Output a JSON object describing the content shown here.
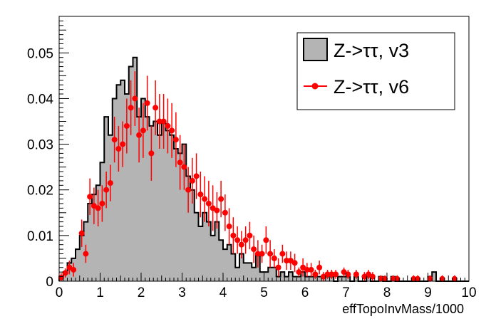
{
  "chart_data": {
    "type": "histogram",
    "title": "",
    "xlabel": "effTopoInvMass/1000",
    "ylabel": "",
    "xlim": [
      0,
      10
    ],
    "ylim": [
      0,
      0.058
    ],
    "x_ticks": [
      "0",
      "1",
      "2",
      "3",
      "4",
      "5",
      "6",
      "7",
      "8",
      "9",
      "10"
    ],
    "y_ticks": [
      "0",
      "0.01",
      "0.02",
      "0.03",
      "0.04",
      "0.05"
    ],
    "y_tick_values": [
      0,
      0.01,
      0.02,
      0.03,
      0.04,
      0.05
    ],
    "bin_width": 0.1,
    "legend_position": "top-right",
    "series": [
      {
        "name": "Z->ττ, v3",
        "style": "filled-step",
        "fill": "#b4b4b4",
        "line": "#000000",
        "values": [
          0.001,
          0.002,
          0.004,
          0.005,
          0.007,
          0.01,
          0.013,
          0.017,
          0.019,
          0.021,
          0.026,
          0.036,
          0.032,
          0.04,
          0.043,
          0.044,
          0.041,
          0.047,
          0.049,
          0.036,
          0.04,
          0.036,
          0.034,
          0.035,
          0.032,
          0.035,
          0.033,
          0.032,
          0.029,
          0.028,
          0.03,
          0.023,
          0.02,
          0.015,
          0.012,
          0.015,
          0.013,
          0.01,
          0.013,
          0.009,
          0.007,
          0.008,
          0.006,
          0.003,
          0.006,
          0.004,
          0.004,
          0.003,
          0.006,
          0.002,
          0.002,
          0.003,
          0.003,
          0.001,
          0.002,
          0.001,
          0.002,
          0.001,
          0.001,
          0.002,
          0.001,
          0.001,
          0.001,
          0.001,
          0.001,
          0.001,
          0.001,
          0.0,
          0.001,
          0.001,
          0.001,
          0.0,
          0.001,
          0.0,
          0.0,
          0.001,
          0.0,
          0.0,
          0.001,
          0.0,
          0.0,
          0.001,
          0.0,
          0.0,
          0.0,
          0.0,
          0.0,
          0.0,
          0.0,
          0.0,
          0.001,
          0.002,
          0.0,
          0.0,
          0.0,
          0.0,
          0.0,
          0.0,
          0.0,
          0.0
        ]
      },
      {
        "name": "Z->ττ, v6",
        "style": "points-with-errors",
        "color": "#ff0000",
        "points": [
          [
            0.05,
            0.0008,
            0.001
          ],
          [
            0.15,
            0.0018,
            0.001
          ],
          [
            0.25,
            0.003,
            0.0015
          ],
          [
            0.35,
            0.0025,
            0.0015
          ],
          [
            0.55,
            0.0105,
            0.003
          ],
          [
            0.65,
            0.006,
            0.002
          ],
          [
            0.75,
            0.0185,
            0.004
          ],
          [
            0.85,
            0.0165,
            0.004
          ],
          [
            0.95,
            0.016,
            0.004
          ],
          [
            1.05,
            0.017,
            0.004
          ],
          [
            1.15,
            0.02,
            0.004
          ],
          [
            1.25,
            0.0215,
            0.004
          ],
          [
            1.35,
            0.031,
            0.005
          ],
          [
            1.45,
            0.029,
            0.005
          ],
          [
            1.55,
            0.03,
            0.005
          ],
          [
            1.65,
            0.034,
            0.006
          ],
          [
            1.75,
            0.038,
            0.006
          ],
          [
            1.85,
            0.04,
            0.006
          ],
          [
            1.95,
            0.032,
            0.006
          ],
          [
            2.05,
            0.033,
            0.006
          ],
          [
            2.15,
            0.039,
            0.006
          ],
          [
            2.25,
            0.028,
            0.006
          ],
          [
            2.35,
            0.038,
            0.006
          ],
          [
            2.45,
            0.035,
            0.006
          ],
          [
            2.55,
            0.035,
            0.006
          ],
          [
            2.65,
            0.034,
            0.006
          ],
          [
            2.75,
            0.033,
            0.006
          ],
          [
            2.85,
            0.031,
            0.006
          ],
          [
            2.95,
            0.026,
            0.006
          ],
          [
            3.05,
            0.025,
            0.005
          ],
          [
            3.15,
            0.02,
            0.005
          ],
          [
            3.25,
            0.022,
            0.005
          ],
          [
            3.35,
            0.023,
            0.005
          ],
          [
            3.45,
            0.019,
            0.005
          ],
          [
            3.55,
            0.018,
            0.005
          ],
          [
            3.65,
            0.017,
            0.005
          ],
          [
            3.75,
            0.016,
            0.005
          ],
          [
            3.85,
            0.0155,
            0.004
          ],
          [
            3.95,
            0.018,
            0.004
          ],
          [
            4.05,
            0.015,
            0.004
          ],
          [
            4.15,
            0.012,
            0.004
          ],
          [
            4.25,
            0.01,
            0.004
          ],
          [
            4.35,
            0.009,
            0.003
          ],
          [
            4.45,
            0.008,
            0.003
          ],
          [
            4.55,
            0.009,
            0.003
          ],
          [
            4.65,
            0.01,
            0.003
          ],
          [
            4.75,
            0.007,
            0.003
          ],
          [
            4.85,
            0.006,
            0.003
          ],
          [
            4.95,
            0.006,
            0.002
          ],
          [
            5.05,
            0.009,
            0.003
          ],
          [
            5.15,
            0.006,
            0.003
          ],
          [
            5.25,
            0.005,
            0.002
          ],
          [
            5.35,
            0.003,
            0.002
          ],
          [
            5.45,
            0.006,
            0.002
          ],
          [
            5.55,
            0.0045,
            0.002
          ],
          [
            5.65,
            0.0045,
            0.002
          ],
          [
            5.75,
            0.004,
            0.002
          ],
          [
            5.85,
            0.002,
            0.001
          ],
          [
            5.95,
            0.003,
            0.002
          ],
          [
            6.05,
            0.0025,
            0.0015
          ],
          [
            6.15,
            0.0025,
            0.0015
          ],
          [
            6.25,
            0.0015,
            0.001
          ],
          [
            6.35,
            0.003,
            0.0015
          ],
          [
            6.45,
            0.001,
            0.001
          ],
          [
            6.55,
            0.0015,
            0.001
          ],
          [
            6.65,
            0.0015,
            0.001
          ],
          [
            6.75,
            0.0015,
            0.001
          ],
          [
            6.95,
            0.002,
            0.001
          ],
          [
            7.05,
            0.0015,
            0.001
          ],
          [
            7.25,
            0.0015,
            0.001
          ],
          [
            7.45,
            0.001,
            0.001
          ],
          [
            7.55,
            0.0015,
            0.001
          ],
          [
            7.65,
            0.001,
            0.001
          ],
          [
            7.85,
            0.0005,
            0.0008
          ],
          [
            7.95,
            0.0005,
            0.0008
          ],
          [
            8.15,
            0.0005,
            0.0008
          ],
          [
            8.25,
            0.0005,
            0.0008
          ],
          [
            8.65,
            0.0005,
            0.0008
          ],
          [
            8.75,
            0.0005,
            0.0008
          ],
          [
            9.05,
            0.0005,
            0.0008
          ],
          [
            9.35,
            0.0005,
            0.0008
          ],
          [
            9.65,
            0.0005,
            0.0008
          ]
        ]
      }
    ],
    "legend": [
      {
        "label": "Z->ττ, v3",
        "kind": "box"
      },
      {
        "label": "Z->ττ, v6",
        "kind": "marker"
      }
    ]
  }
}
